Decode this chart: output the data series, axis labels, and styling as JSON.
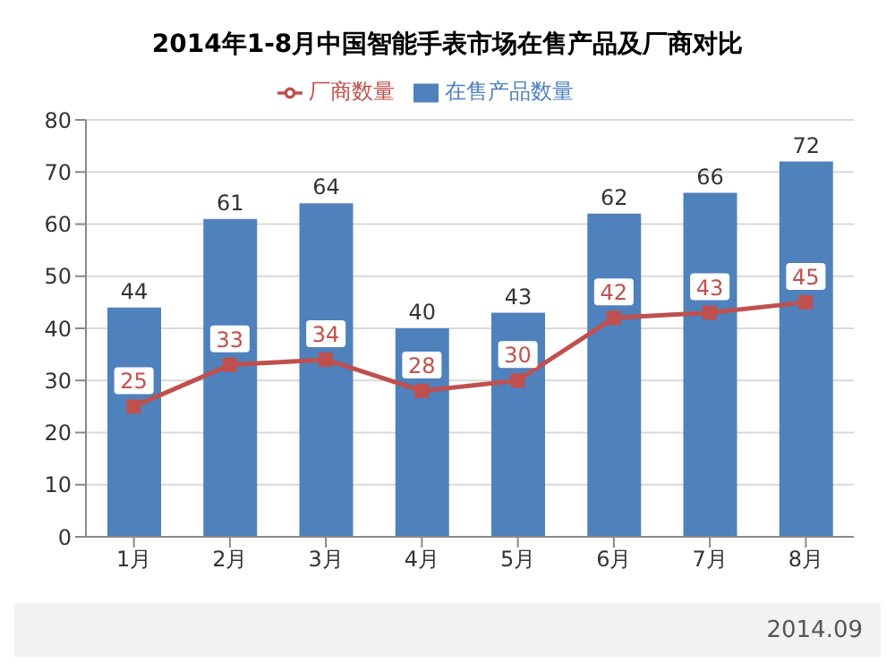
{
  "chart_data": {
    "type": "bar",
    "title": "2014年1-8月中国智能手表市场在售产品及厂商对比",
    "categories": [
      "1月",
      "2月",
      "3月",
      "4月",
      "5月",
      "6月",
      "7月",
      "8月"
    ],
    "series": [
      {
        "name": "在售产品数量",
        "color": "#4f81bd",
        "values": [
          44,
          61,
          64,
          40,
          43,
          62,
          66,
          72
        ]
      },
      {
        "name": "厂商数量",
        "type": "line",
        "color": "#c0504d",
        "marker": "square",
        "values": [
          25,
          33,
          34,
          28,
          30,
          42,
          43,
          45
        ]
      }
    ],
    "ylim": [
      0,
      80
    ],
    "yticks": [
      0,
      10,
      20,
      30,
      40,
      50,
      60,
      70,
      80
    ],
    "grid": "y",
    "legend": "top",
    "data_labels": true,
    "annotations": [
      "2014.09"
    ]
  }
}
